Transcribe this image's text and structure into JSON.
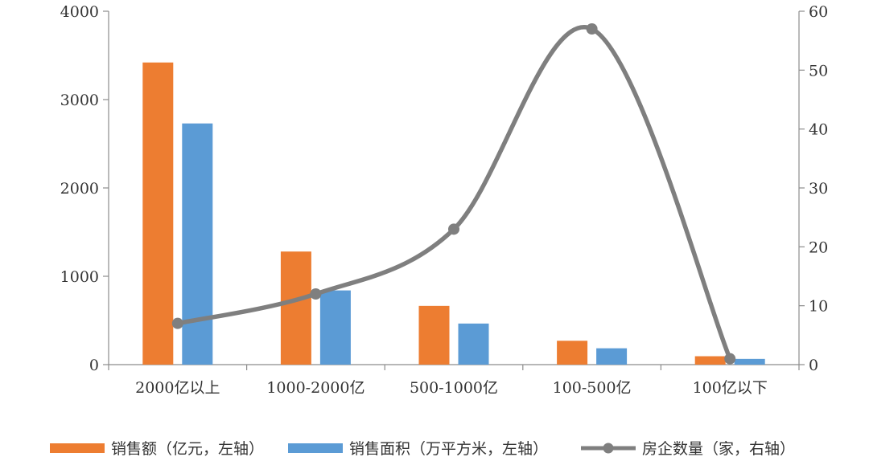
{
  "chart_data": {
    "type": "bar",
    "categories": [
      "2000亿以上",
      "1000-2000亿",
      "500-1000亿",
      "100-500亿",
      "100亿以下"
    ],
    "series": [
      {
        "name": "销售额（亿元，左轴）",
        "type": "bar",
        "axis": "left",
        "color": "#ED7D31",
        "values": [
          3420,
          1280,
          665,
          270,
          95
        ]
      },
      {
        "name": "销售面积（万平方米，左轴）",
        "type": "bar",
        "axis": "left",
        "color": "#5B9BD5",
        "values": [
          2730,
          840,
          465,
          185,
          65
        ]
      },
      {
        "name": "房企数量（家，右轴）",
        "type": "line",
        "smooth": true,
        "axis": "right",
        "color": "#7F7F7F",
        "values": [
          7,
          12,
          23,
          57,
          1
        ]
      }
    ],
    "y_left": {
      "min": 0,
      "max": 4000,
      "ticks": [
        "0",
        "1000",
        "2000",
        "3000",
        "4000"
      ]
    },
    "y_right": {
      "min": 0,
      "max": 60,
      "ticks": [
        "0",
        "10",
        "20",
        "30",
        "40",
        "50",
        "60"
      ]
    },
    "grid": false,
    "legend": "bottom"
  }
}
